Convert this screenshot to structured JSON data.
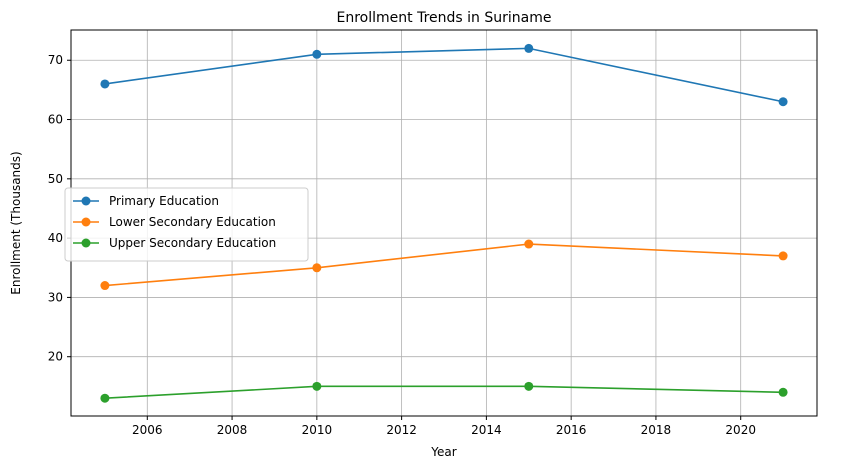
{
  "chart_data": {
    "type": "line",
    "title": "Enrollment Trends in Suriname",
    "xlabel": "Year",
    "ylabel": "Enrollment (Thousands)",
    "xlim": [
      2004.2,
      2021.8
    ],
    "ylim": [
      10.0,
      75.1
    ],
    "x_ticks": [
      2006,
      2008,
      2010,
      2012,
      2014,
      2016,
      2018,
      2020
    ],
    "y_ticks": [
      20,
      30,
      40,
      50,
      60,
      70
    ],
    "grid": true,
    "legend_position": "center-left",
    "x": [
      2005,
      2010,
      2015,
      2021
    ],
    "series": [
      {
        "name": "Primary Education",
        "color": "#1f77b4",
        "values": [
          66,
          71,
          72,
          63
        ]
      },
      {
        "name": "Lower Secondary Education",
        "color": "#ff7f0e",
        "values": [
          32,
          35,
          39,
          37
        ]
      },
      {
        "name": "Upper Secondary Education",
        "color": "#2ca02c",
        "values": [
          13,
          15,
          15,
          14
        ]
      }
    ]
  }
}
